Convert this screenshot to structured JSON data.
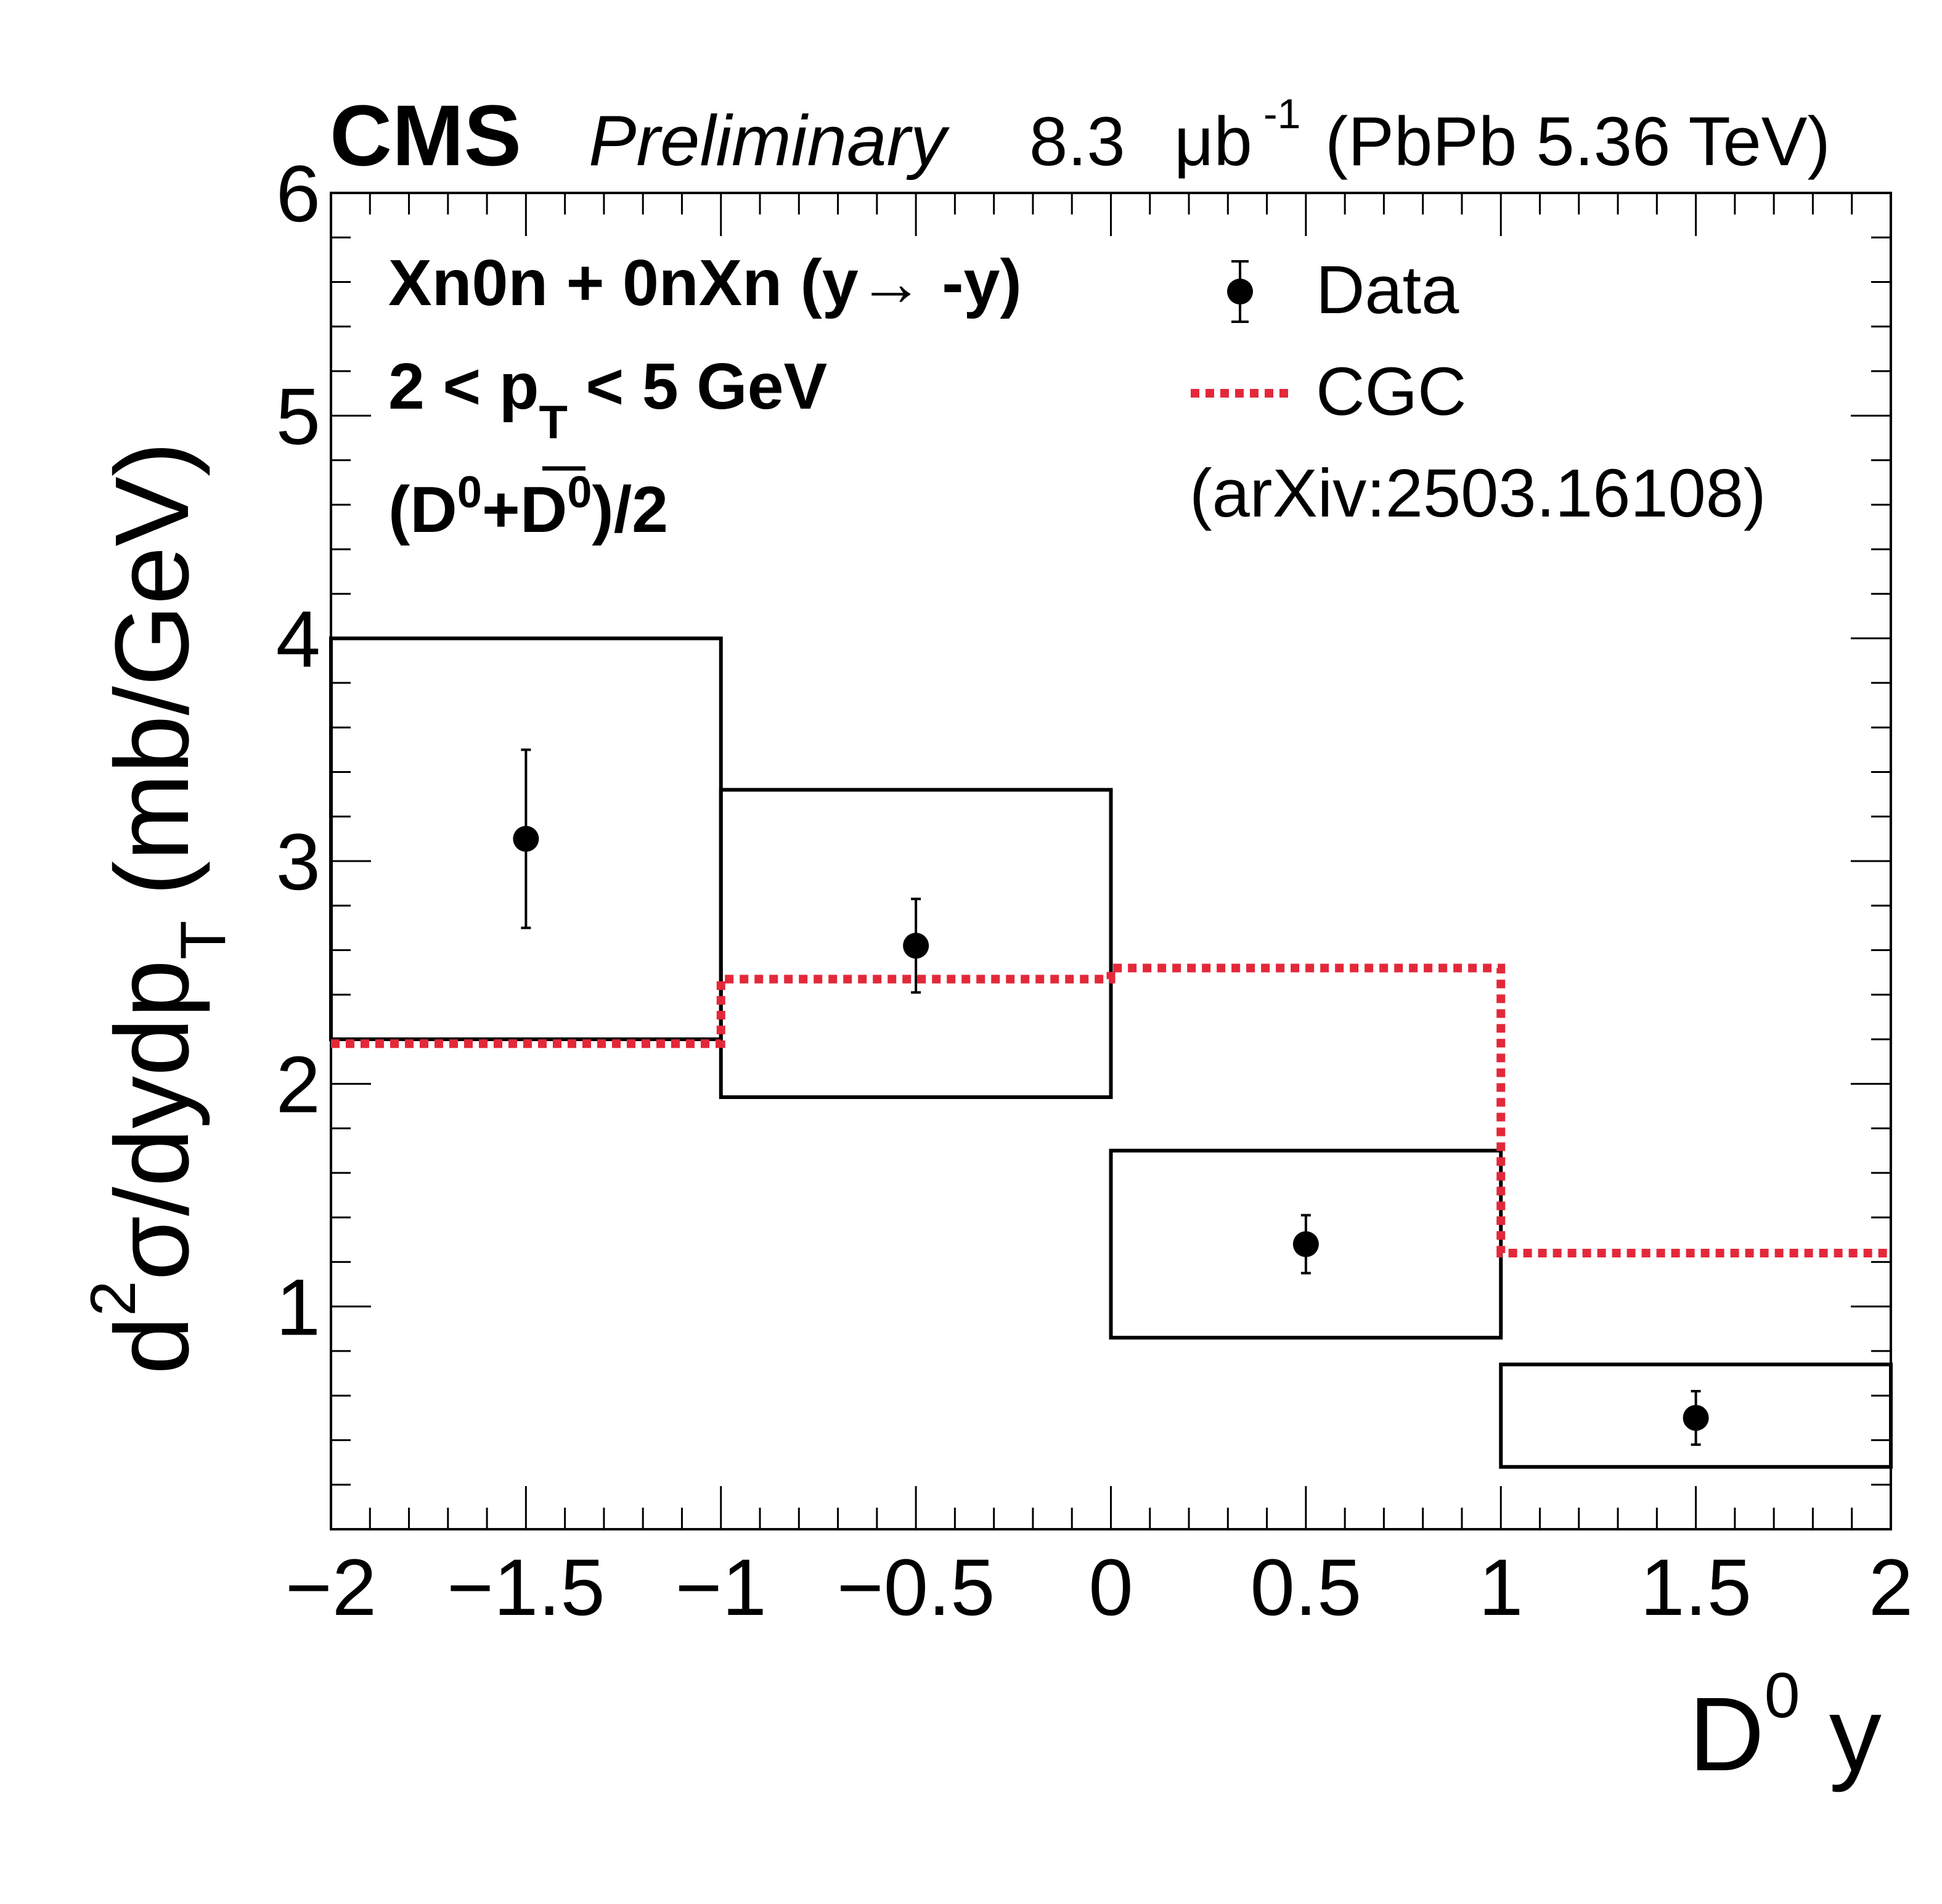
{
  "header": {
    "experiment": "CMS",
    "status": "Preliminary",
    "lumi_value": "8.3",
    "lumi_unit": "μb",
    "lumi_exp": "-1",
    "system": "(PbPb 5.36 TeV)"
  },
  "annotations": {
    "line1": "Xn0n + 0nXn (y→ -y)",
    "line2_pre": "2 < p",
    "line2_sub": "T",
    "line2_post": " < 5 GeV",
    "line3_a": "(D",
    "line3_sup1": "0",
    "line3_plus": "+",
    "line3_dbar": "D",
    "line3_sup2": "0",
    "line3_tail": ")/2"
  },
  "legend": {
    "data_label": "Data",
    "model_label": "CGC",
    "model_ref": "(arXiv:2503.16108)"
  },
  "axes": {
    "x_label_main": "D",
    "x_label_sup": "0",
    "x_label_tail": " y",
    "y_label_d": "d",
    "y_label_sup": "2",
    "y_label_main": "σ/dydp",
    "y_label_sub": "T",
    "y_label_unit": "(mb/GeV)"
  },
  "colors": {
    "model": "#e3283a",
    "data": "#000000"
  },
  "chart_data": {
    "type": "scatter",
    "xlim": [
      -2,
      2
    ],
    "ylim": [
      0,
      6
    ],
    "x_ticks": [
      -2,
      -1.5,
      -1,
      -0.5,
      0,
      0.5,
      1,
      1.5,
      2
    ],
    "x_tick_labels": [
      "−2",
      "−1.5",
      "−1",
      "−0.5",
      "0",
      "0.5",
      "1",
      "1.5",
      "2"
    ],
    "y_ticks": [
      1,
      2,
      3,
      4,
      5,
      6
    ],
    "y_tick_labels": [
      "1",
      "2",
      "3",
      "4",
      "5",
      "6"
    ],
    "series": [
      {
        "name": "Data",
        "x": [
          -1.5,
          -0.5,
          0.5,
          1.5
        ],
        "y": [
          3.1,
          2.62,
          1.28,
          0.5
        ],
        "stat_err": [
          0.4,
          0.21,
          0.13,
          0.12
        ],
        "syst_low": [
          2.2,
          1.94,
          0.86,
          0.28
        ],
        "syst_high": [
          4.0,
          3.32,
          1.7,
          0.74
        ],
        "bin_edges": [
          -2,
          -1,
          0,
          1,
          2
        ]
      },
      {
        "name": "CGC",
        "type": "step",
        "bin_edges": [
          -2,
          -1,
          0,
          1,
          2
        ],
        "values": [
          2.18,
          2.47,
          2.52,
          1.24
        ]
      }
    ]
  }
}
